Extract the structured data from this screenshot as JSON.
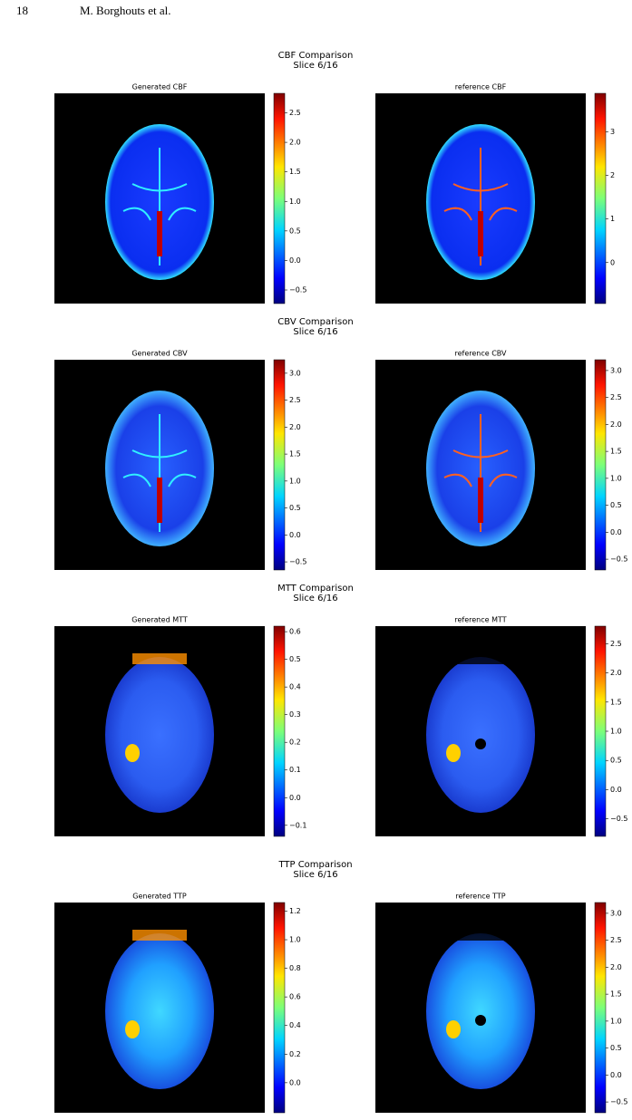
{
  "header": {
    "page_number": "18",
    "authors": "M. Borghouts et al."
  },
  "figures": [
    {
      "title": "CBF Comparison",
      "subtitle": "Slice 6/16",
      "panels": [
        {
          "title": "Generated CBF",
          "colorbar": {
            "clim": [
              -0.73,
              2.83
            ],
            "ticks": [
              {
                "value": -0.5,
                "label": "−0.5"
              },
              {
                "value": 0,
                "label": "0.0"
              },
              0.5,
              {
                "value": 1,
                "label": "1.0"
              },
              1.5,
              {
                "value": 2,
                "label": "2.0"
              },
              2.5
            ]
          }
        },
        {
          "title": "reference CBF",
          "colorbar": {
            "clim": [
              -0.94,
              3.88
            ],
            "ticks": [
              0,
              1,
              2,
              3
            ]
          }
        }
      ]
    },
    {
      "title": "CBV Comparison",
      "subtitle": "Slice 6/16",
      "panels": [
        {
          "title": "Generated CBV",
          "colorbar": {
            "clim": [
              -0.65,
              3.25
            ],
            "ticks": [
              {
                "value": -0.5,
                "label": "−0.5"
              },
              {
                "value": 0,
                "label": "0.0"
              },
              0.5,
              {
                "value": 1,
                "label": "1.0"
              },
              1.5,
              {
                "value": 2,
                "label": "2.0"
              },
              2.5,
              {
                "value": 3,
                "label": "3.0"
              }
            ]
          }
        },
        {
          "title": "reference CBV",
          "colorbar": {
            "clim": [
              -0.7,
              3.2
            ],
            "ticks": [
              {
                "value": -0.5,
                "label": "−0.5"
              },
              {
                "value": 0,
                "label": "0.0"
              },
              0.5,
              {
                "value": 1,
                "label": "1.0"
              },
              1.5,
              {
                "value": 2,
                "label": "2.0"
              },
              2.5,
              {
                "value": 3,
                "label": "3.0"
              }
            ]
          }
        }
      ]
    },
    {
      "title": "MTT Comparison",
      "subtitle": "Slice 6/16",
      "panels": [
        {
          "title": "Generated MTT",
          "colorbar": {
            "clim": [
              -0.14,
              0.62
            ],
            "ticks": [
              {
                "value": -0.1,
                "label": "−0.1"
              },
              {
                "value": 0,
                "label": "0.0"
              },
              0.1,
              0.2,
              0.3,
              0.4,
              0.5,
              0.6
            ]
          }
        },
        {
          "title": "reference MTT",
          "colorbar": {
            "clim": [
              -0.8,
              2.8
            ],
            "ticks": [
              {
                "value": -0.5,
                "label": "−0.5"
              },
              {
                "value": 0,
                "label": "0.0"
              },
              0.5,
              {
                "value": 1,
                "label": "1.0"
              },
              1.5,
              {
                "value": 2,
                "label": "2.0"
              },
              2.5
            ]
          }
        }
      ]
    },
    {
      "title": "TTP Comparison",
      "subtitle": "Slice 6/16",
      "panels": [
        {
          "title": "Generated TTP",
          "colorbar": {
            "clim": [
              -0.21,
              1.26
            ],
            "ticks": [
              {
                "value": 0,
                "label": "0.0"
              },
              0.2,
              0.4,
              0.6,
              0.8,
              {
                "value": 1,
                "label": "1.0"
              },
              1.2
            ]
          }
        },
        {
          "title": "reference TTP",
          "colorbar": {
            "clim": [
              -0.7,
              3.2
            ],
            "ticks": [
              {
                "value": -0.5,
                "label": "−0.5"
              },
              {
                "value": 0,
                "label": "0.0"
              },
              0.5,
              {
                "value": 1,
                "label": "1.0"
              },
              1.5,
              {
                "value": 2,
                "label": "2.0"
              },
              2.5,
              {
                "value": 3,
                "label": "3.0"
              }
            ]
          }
        }
      ]
    }
  ]
}
